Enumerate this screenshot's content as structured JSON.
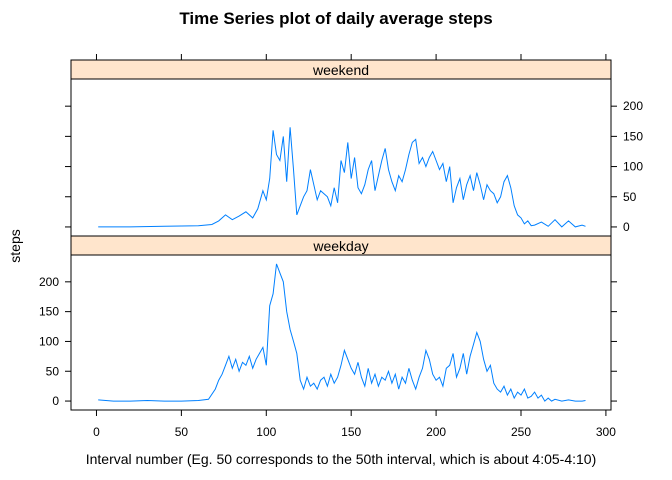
{
  "chart_data": {
    "type": "line",
    "title": "Time Series plot of daily average steps",
    "xlabel": "Interval number (Eg. 50 corresponds to the 50th interval, which is about 4:05-4:10)",
    "ylabel": "steps",
    "xlim": [
      -15,
      303
    ],
    "ylim": [
      -15,
      245
    ],
    "x_ticks": [
      0,
      50,
      100,
      150,
      200,
      250,
      300
    ],
    "y_ticks": [
      0,
      50,
      100,
      150,
      200
    ],
    "line_color": "#0080ff",
    "strip_color": "#ffe5cc",
    "panels": [
      {
        "name": "weekend",
        "y_tick_side": "right",
        "x": [
          1,
          20,
          40,
          60,
          68,
          72,
          76,
          80,
          84,
          88,
          92,
          95,
          98,
          100,
          102,
          104,
          106,
          108,
          110,
          112,
          114,
          116,
          118,
          120,
          122,
          124,
          126,
          128,
          130,
          132,
          134,
          136,
          138,
          140,
          142,
          144,
          146,
          148,
          150,
          152,
          154,
          156,
          158,
          160,
          162,
          164,
          166,
          168,
          170,
          172,
          174,
          176,
          178,
          180,
          182,
          184,
          186,
          188,
          190,
          192,
          194,
          196,
          198,
          200,
          202,
          204,
          206,
          208,
          210,
          212,
          214,
          216,
          218,
          220,
          222,
          224,
          226,
          228,
          230,
          232,
          234,
          236,
          238,
          240,
          242,
          244,
          246,
          248,
          250,
          252,
          254,
          256,
          258,
          262,
          266,
          270,
          274,
          278,
          282,
          286,
          288
        ],
        "y": [
          0,
          0,
          1,
          2,
          4,
          10,
          20,
          12,
          18,
          25,
          15,
          30,
          60,
          45,
          80,
          160,
          120,
          110,
          150,
          75,
          165,
          95,
          20,
          35,
          50,
          60,
          95,
          70,
          45,
          60,
          55,
          50,
          35,
          65,
          40,
          110,
          90,
          140,
          80,
          115,
          65,
          55,
          70,
          95,
          110,
          60,
          85,
          110,
          130,
          95,
          75,
          60,
          85,
          75,
          95,
          120,
          140,
          145,
          105,
          115,
          100,
          115,
          125,
          110,
          95,
          105,
          75,
          100,
          40,
          65,
          80,
          45,
          70,
          85,
          60,
          90,
          70,
          45,
          70,
          60,
          55,
          40,
          50,
          75,
          85,
          65,
          35,
          20,
          15,
          5,
          10,
          2,
          3,
          8,
          1,
          12,
          0,
          10,
          0,
          3,
          1
        ]
      },
      {
        "name": "weekday",
        "y_tick_side": "left",
        "x": [
          1,
          10,
          20,
          30,
          40,
          50,
          60,
          66,
          70,
          72,
          74,
          76,
          78,
          80,
          82,
          84,
          86,
          88,
          90,
          92,
          94,
          96,
          98,
          100,
          102,
          104,
          106,
          108,
          110,
          112,
          114,
          116,
          118,
          120,
          122,
          124,
          126,
          128,
          130,
          132,
          134,
          136,
          138,
          140,
          142,
          144,
          146,
          148,
          150,
          152,
          154,
          156,
          158,
          160,
          162,
          164,
          166,
          168,
          170,
          172,
          174,
          176,
          178,
          180,
          182,
          184,
          186,
          188,
          190,
          192,
          194,
          196,
          198,
          200,
          202,
          204,
          206,
          208,
          210,
          212,
          214,
          216,
          218,
          220,
          222,
          224,
          226,
          228,
          230,
          232,
          234,
          236,
          238,
          240,
          242,
          244,
          246,
          248,
          250,
          252,
          254,
          256,
          258,
          260,
          262,
          264,
          266,
          268,
          270,
          274,
          278,
          282,
          286,
          288
        ],
        "y": [
          2,
          0,
          0,
          1,
          0,
          0,
          1,
          3,
          20,
          35,
          45,
          60,
          75,
          55,
          70,
          50,
          65,
          60,
          75,
          55,
          70,
          80,
          90,
          60,
          160,
          180,
          230,
          215,
          200,
          150,
          120,
          100,
          80,
          35,
          20,
          40,
          25,
          30,
          20,
          35,
          40,
          25,
          45,
          30,
          40,
          60,
          85,
          70,
          55,
          45,
          65,
          40,
          25,
          55,
          30,
          45,
          25,
          40,
          35,
          50,
          30,
          45,
          20,
          40,
          30,
          55,
          35,
          20,
          40,
          55,
          85,
          70,
          45,
          35,
          40,
          25,
          55,
          60,
          80,
          40,
          55,
          80,
          45,
          75,
          95,
          115,
          100,
          70,
          50,
          60,
          30,
          20,
          15,
          25,
          10,
          20,
          5,
          15,
          10,
          20,
          5,
          8,
          15,
          5,
          10,
          0,
          5,
          0,
          3,
          0,
          2,
          0,
          0,
          1
        ]
      }
    ]
  }
}
